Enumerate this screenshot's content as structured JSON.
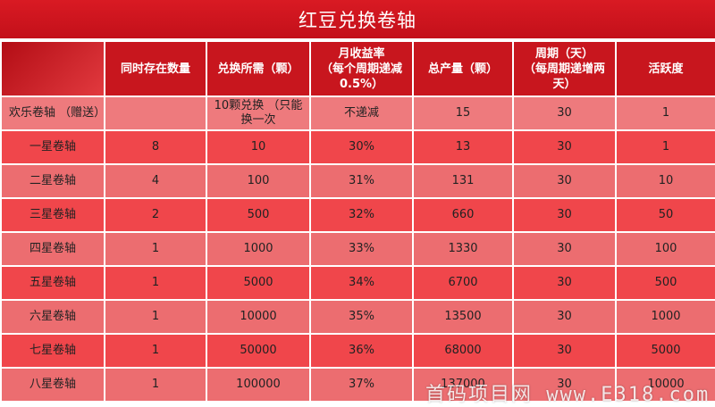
{
  "title": "红豆兑换卷轴",
  "headers": {
    "col0": "",
    "col1": "同时存在数量",
    "col2": "兑换所需（颗）",
    "col3_line1": "月收益率",
    "col3_line2": "（每个周期递减",
    "col3_line3": "0.5%）",
    "col4": "总产量（颗）",
    "col5_line1": "周期（天）",
    "col5_line2": "（每周期递增两",
    "col5_line3": "天）",
    "col6": "活跃度"
  },
  "rows": [
    {
      "name": "欢乐卷轴 （赠送）",
      "count": "",
      "cost": "10颗兑换 （只能换一次",
      "rate": "不递减",
      "total": "15",
      "period": "30",
      "activity": "1"
    },
    {
      "name": "一星卷轴",
      "count": "8",
      "cost": "10",
      "rate": "30%",
      "total": "13",
      "period": "30",
      "activity": "1"
    },
    {
      "name": "二星卷轴",
      "count": "4",
      "cost": "100",
      "rate": "31%",
      "total": "131",
      "period": "30",
      "activity": "10"
    },
    {
      "name": "三星卷轴",
      "count": "2",
      "cost": "500",
      "rate": "32%",
      "total": "660",
      "period": "30",
      "activity": "50"
    },
    {
      "name": "四星卷轴",
      "count": "1",
      "cost": "1000",
      "rate": "33%",
      "total": "1330",
      "period": "30",
      "activity": "100"
    },
    {
      "name": "五星卷轴",
      "count": "1",
      "cost": "5000",
      "rate": "34%",
      "total": "6700",
      "period": "30",
      "activity": "500"
    },
    {
      "name": "六星卷轴",
      "count": "1",
      "cost": "10000",
      "rate": "35%",
      "total": "13500",
      "period": "30",
      "activity": "1000"
    },
    {
      "name": "七星卷轴",
      "count": "1",
      "cost": "50000",
      "rate": "36%",
      "total": "68000",
      "period": "30",
      "activity": "5000"
    },
    {
      "name": "八星卷轴",
      "count": "1",
      "cost": "100000",
      "rate": "37%",
      "total": "137000",
      "period": "30",
      "activity": "10000"
    }
  ],
  "watermark": "首码项目网 www.E318.com",
  "colors": {
    "header_red": "#c8161e",
    "row_light": "#ec6d70",
    "row_dark": "#f0464b"
  }
}
